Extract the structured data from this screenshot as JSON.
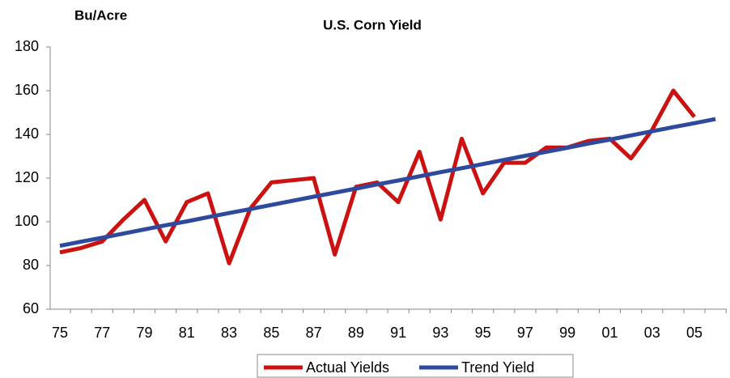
{
  "chart_data": {
    "type": "line",
    "title": "U.S. Corn Yield",
    "y_label": "Bu/Acre",
    "categories": [
      "75",
      null,
      "77",
      null,
      "79",
      null,
      "81",
      null,
      "83",
      null,
      "85",
      null,
      "87",
      null,
      "89",
      null,
      "91",
      null,
      "93",
      null,
      "95",
      null,
      "97",
      null,
      "99",
      null,
      "01",
      null,
      "03",
      null,
      "05",
      null
    ],
    "series": [
      {
        "name": "Actual Yields",
        "color": "#cc1111",
        "values": [
          86,
          88,
          91,
          101,
          110,
          91,
          109,
          113,
          81,
          106,
          118,
          119,
          120,
          85,
          116,
          118,
          109,
          132,
          101,
          138,
          113,
          127,
          127,
          134,
          134,
          137,
          138,
          129,
          142,
          160,
          148,
          null
        ]
      },
      {
        "name": "Trend Yield",
        "color": "#2e4a9e",
        "values": [
          89,
          90.9,
          92.7,
          94.6,
          96.5,
          98.4,
          100.2,
          102.1,
          104,
          105.8,
          107.7,
          109.6,
          111.5,
          113.3,
          115.2,
          117.1,
          118.9,
          120.8,
          122.7,
          124.5,
          126.4,
          128.3,
          130.2,
          132,
          133.9,
          135.8,
          137.6,
          139.5,
          141.4,
          143.3,
          145.1,
          147
        ]
      }
    ],
    "ylim": [
      60,
      180
    ],
    "yticks": [
      60,
      80,
      100,
      120,
      140,
      160,
      180
    ],
    "grid": false,
    "legend": "bottom"
  }
}
